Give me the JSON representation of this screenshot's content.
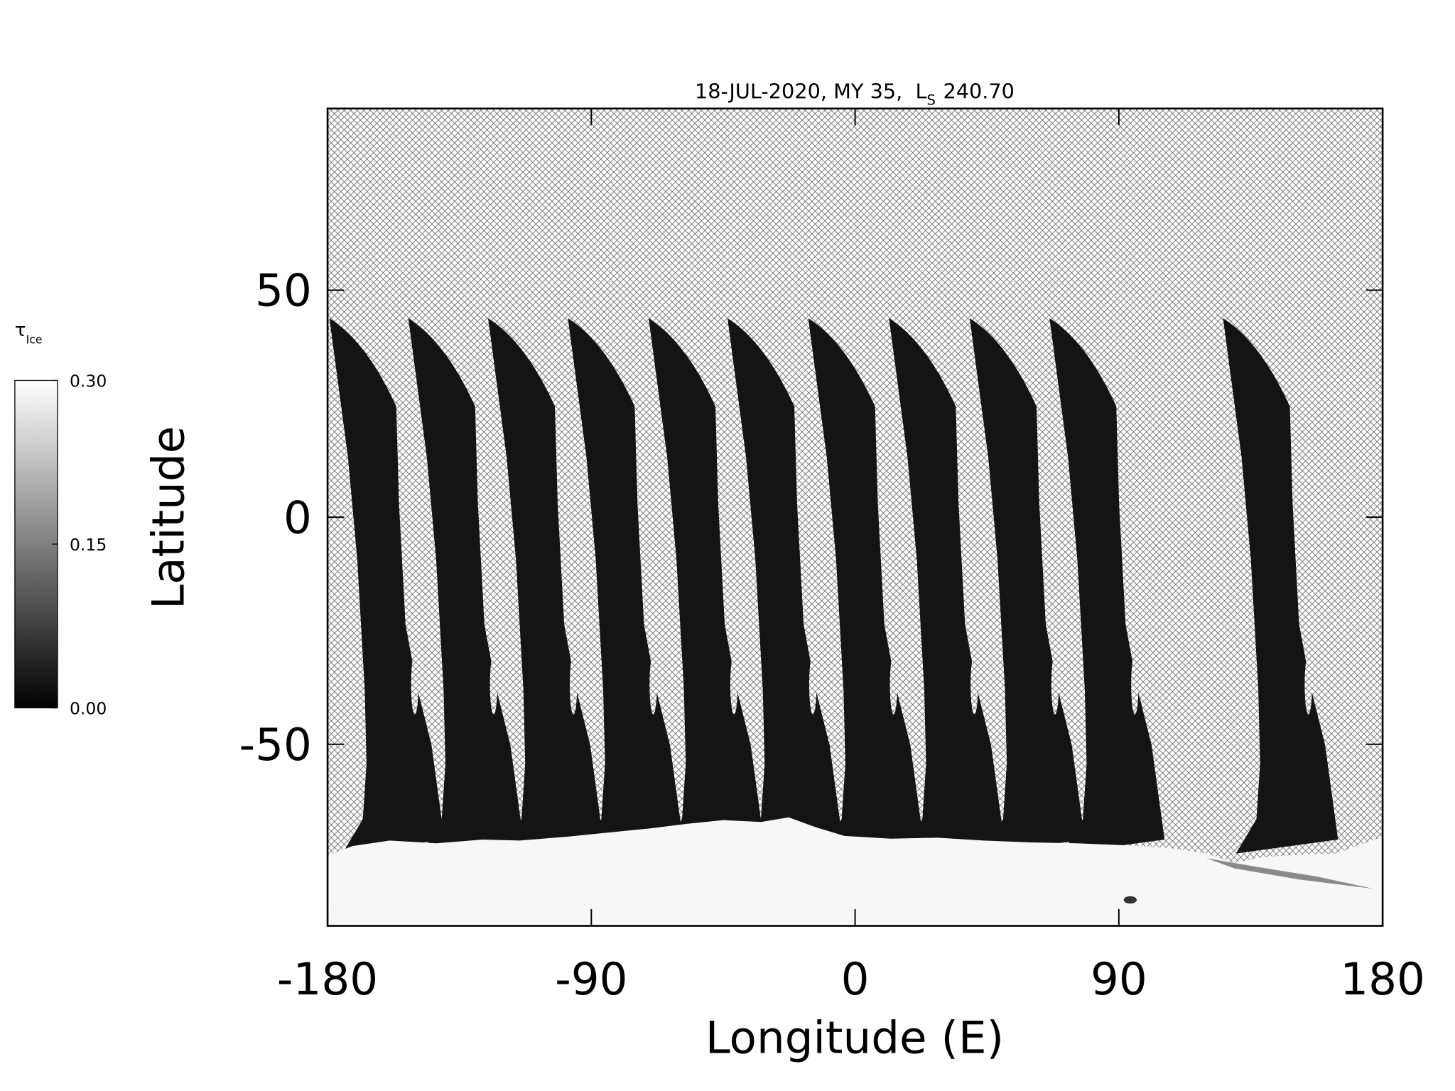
{
  "chart_data": {
    "type": "map",
    "title": "18-JUL-2020, MY 35,",
    "title_ls": "L",
    "title_ls_sub": "S",
    "title_ls_value": "240.70",
    "xlabel": "Longitude (E)",
    "ylabel": "Latitude",
    "xlim": [
      -180,
      180
    ],
    "ylim": [
      -90,
      90
    ],
    "xticks": [
      -180,
      -90,
      0,
      90,
      180
    ],
    "yticks": [
      -50,
      0,
      50
    ],
    "colorbar": {
      "label": "τ",
      "label_sub": "Ice",
      "lim": [
        0,
        0.3
      ],
      "ticks": [
        {
          "value": 0,
          "label": "0.00"
        },
        0.15,
        {
          "value": 0.3,
          "label": "0.30"
        }
      ],
      "colors": [
        "#000000",
        "#ffffff"
      ]
    }
  }
}
